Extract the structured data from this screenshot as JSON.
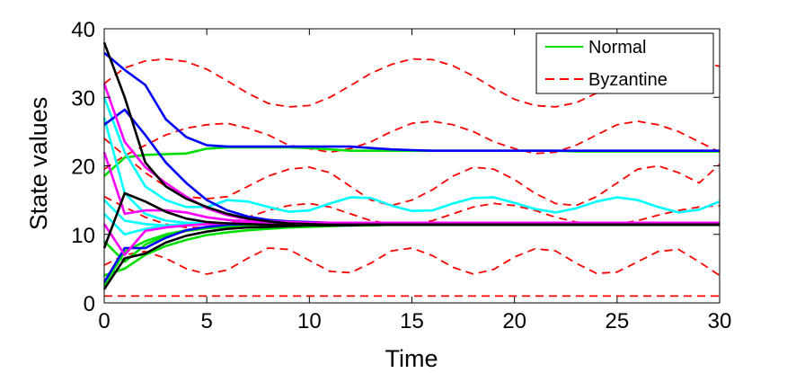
{
  "chart_data": {
    "type": "line",
    "title": "",
    "xlabel": "Time",
    "ylabel": "State values",
    "xlim": [
      0,
      30
    ],
    "ylim": [
      0,
      40
    ],
    "xticks": [
      0,
      5,
      10,
      15,
      20,
      25,
      30
    ],
    "yticks": [
      0,
      10,
      20,
      30,
      40
    ],
    "grid": false,
    "legend": {
      "position": "top-right",
      "entries": [
        {
          "label": "Normal",
          "color": "#00e000",
          "dash": "solid"
        },
        {
          "label": "Byzantine",
          "color": "#ff0000",
          "dash": "dashed"
        }
      ]
    },
    "x": [
      0,
      1,
      2,
      3,
      4,
      5,
      6,
      7,
      8,
      9,
      10,
      11,
      12,
      13,
      14,
      15,
      16,
      17,
      18,
      19,
      20,
      21,
      22,
      23,
      24,
      25,
      26,
      27,
      28,
      29,
      30
    ],
    "series": [
      {
        "name": "Byzantine 1",
        "group": "Byzantine",
        "color": "#ff0000",
        "dash": "dashed",
        "values": [
          32,
          34.3,
          35.3,
          35.6,
          35.2,
          34.1,
          32.4,
          30.6,
          29.1,
          28.6,
          28.8,
          30,
          31.7,
          33.5,
          34.8,
          35.6,
          35.5,
          34.6,
          33.1,
          31.3,
          29.7,
          28.8,
          28.6,
          29.2,
          30.6,
          32.4,
          33.9,
          35.1,
          35.6,
          35.3,
          34.5
        ]
      },
      {
        "name": "Byzantine 2",
        "group": "Byzantine",
        "color": "#ff0000",
        "dash": "dashed",
        "values": [
          19.5,
          21.5,
          23,
          24.5,
          25.5,
          26,
          26.2,
          25.5,
          24.5,
          23,
          22.5,
          22,
          22.5,
          23.5,
          25,
          26.2,
          26.5,
          26,
          25,
          23.5,
          22.5,
          21.8,
          22,
          23,
          24.5,
          26,
          26.5,
          26,
          25,
          23.5,
          22
        ]
      },
      {
        "name": "Byzantine 3",
        "group": "Byzantine",
        "color": "#ff0000",
        "dash": "dashed",
        "values": [
          24,
          21.5,
          19,
          17,
          15.5,
          15.2,
          15.5,
          17,
          18.5,
          19.5,
          19.8,
          19,
          17,
          15,
          14.2,
          15,
          16.5,
          18.5,
          19.8,
          19.5,
          18,
          16,
          14.5,
          14.2,
          15.5,
          17.5,
          19.5,
          20,
          19,
          17.5,
          20.2
        ]
      },
      {
        "name": "Byzantine 4",
        "group": "Byzantine",
        "color": "#ff0000",
        "dash": "dashed",
        "values": [
          15.5,
          14,
          12.5,
          11.5,
          11,
          11,
          11.5,
          12.5,
          13.5,
          14.2,
          14.5,
          14,
          13,
          12,
          11.5,
          11.5,
          12,
          13,
          14,
          14.5,
          14.2,
          13.5,
          12.5,
          11.8,
          11.5,
          11.5,
          12,
          12.8,
          13.5,
          14,
          14.2
        ]
      },
      {
        "name": "Byzantine 5",
        "group": "Byzantine",
        "color": "#ff0000",
        "dash": "dashed",
        "values": [
          5.5,
          7,
          7.5,
          6.5,
          5,
          4.2,
          4.8,
          6.5,
          8,
          7.8,
          6.2,
          4.6,
          4.4,
          5.8,
          7.6,
          8,
          6.9,
          5.2,
          4.2,
          4.9,
          6.7,
          7.9,
          7.6,
          5.8,
          4.3,
          4.5,
          6,
          7.5,
          7.8,
          6,
          4
        ]
      },
      {
        "name": "Byzantine 6",
        "group": "Byzantine",
        "color": "#ff0000",
        "dash": "dashed",
        "values": [
          1,
          1,
          1,
          1,
          1,
          1,
          1,
          1,
          1,
          1,
          1,
          1,
          1,
          1,
          1,
          1,
          1,
          1,
          1,
          1,
          1,
          1,
          1,
          1,
          1,
          1,
          1,
          1,
          1,
          1,
          1
        ]
      },
      {
        "name": "Normal 1",
        "group": "Normal",
        "color": "#00e000",
        "dash": "solid",
        "values": [
          18.5,
          21.2,
          21.6,
          21.7,
          21.8,
          22.5,
          22.7,
          22.7,
          22.7,
          22.7,
          22.6,
          22.4,
          22.2,
          22.2,
          22.2,
          22.2,
          22.2,
          22.2,
          22.2,
          22.2,
          22.2,
          22.2,
          22.2,
          22.1,
          22.1,
          22.1,
          22.1,
          22.1,
          22.1,
          22.1,
          22.1
        ]
      },
      {
        "name": "Normal 2",
        "group": "Normal",
        "color": "#00e000",
        "dash": "solid",
        "values": [
          4,
          5,
          7,
          8.3,
          9.2,
          9.9,
          10.3,
          10.6,
          10.8,
          11,
          11.1,
          11.2,
          11.3,
          11.3,
          11.4,
          11.4,
          11.4,
          11.4,
          11.4,
          11.4,
          11.4,
          11.4,
          11.4,
          11.4,
          11.4,
          11.4,
          11.4,
          11.4,
          11.4,
          11.4,
          11.4
        ]
      },
      {
        "name": "Normal 3",
        "group": "Normal",
        "color": "#00e000",
        "dash": "solid",
        "values": [
          2.5,
          7.5,
          9,
          10,
          10.6,
          11,
          11.2,
          11.3,
          11.4,
          11.4,
          11.4,
          11.4,
          11.4,
          11.4,
          11.4,
          11.4,
          11.4,
          11.4,
          11.4,
          11.4,
          11.4,
          11.4,
          11.4,
          11.4,
          11.4,
          11.4,
          11.4,
          11.4,
          11.4,
          11.4,
          11.4
        ]
      },
      {
        "name": "Normal 4",
        "group": "Normal",
        "color": "#00e000",
        "dash": "solid",
        "values": [
          9,
          6,
          8.5,
          9.8,
          10.5,
          10.9,
          11.1,
          11.2,
          11.3,
          11.4,
          11.4,
          11.4,
          11.4,
          11.4,
          11.4,
          11.4,
          11.4,
          11.4,
          11.4,
          11.4,
          11.4,
          11.4,
          11.4,
          11.4,
          11.4,
          11.4,
          11.4,
          11.4,
          11.4,
          11.4,
          11.4
        ]
      },
      {
        "name": "Normal 5",
        "group": "Normal",
        "color": "#00ffff",
        "dash": "solid",
        "values": [
          30,
          22,
          17,
          15,
          14,
          14,
          15,
          14.8,
          14,
          13.3,
          13.5,
          14.5,
          15.4,
          15.3,
          14.2,
          13.4,
          13.5,
          14.5,
          15.3,
          15.4,
          14.6,
          13.7,
          13.2,
          13.8,
          14.8,
          15.4,
          15,
          14,
          13.2,
          13.6,
          14.8
        ]
      },
      {
        "name": "Normal 6",
        "group": "Normal",
        "color": "#00ffff",
        "dash": "solid",
        "values": [
          15,
          12,
          11.5,
          11.3,
          11.5,
          11.6,
          11.6,
          11.6,
          11.6,
          11.6,
          11.6,
          11.6,
          11.6,
          11.6,
          11.6,
          11.6,
          11.6,
          11.6,
          11.6,
          11.6,
          11.6,
          11.6,
          11.6,
          11.6,
          11.6,
          11.6,
          11.6,
          11.6,
          11.6,
          11.6,
          11.6
        ]
      },
      {
        "name": "Normal 7",
        "group": "Normal",
        "color": "#00ffff",
        "dash": "solid",
        "values": [
          27,
          16,
          13,
          12,
          11.7,
          11.6,
          11.6,
          11.6,
          11.6,
          11.6,
          11.6,
          11.6,
          11.6,
          11.6,
          11.6,
          11.6,
          11.6,
          11.6,
          11.6,
          11.6,
          11.6,
          11.6,
          11.6,
          11.6,
          11.6,
          11.6,
          11.6,
          11.6,
          11.6,
          11.6,
          11.6
        ]
      },
      {
        "name": "Normal 8",
        "group": "Normal",
        "color": "#00ffff",
        "dash": "solid",
        "values": [
          13,
          10,
          10.8,
          11.3,
          11.5,
          11.6,
          11.6,
          11.6,
          11.6,
          11.6,
          11.6,
          11.6,
          11.6,
          11.6,
          11.6,
          11.6,
          11.6,
          11.6,
          11.6,
          11.6,
          11.6,
          11.6,
          11.6,
          11.6,
          11.6,
          11.6,
          11.6,
          11.6,
          11.6,
          11.6,
          11.6
        ]
      },
      {
        "name": "Normal 9",
        "group": "Normal",
        "color": "#0000ff",
        "dash": "solid",
        "values": [
          36.5,
          34,
          31.8,
          26.8,
          24.2,
          23,
          22.8,
          22.8,
          22.8,
          22.8,
          22.8,
          22.8,
          22.8,
          22.6,
          22.4,
          22.3,
          22.2,
          22.2,
          22.2,
          22.2,
          22.2,
          22.2,
          22.2,
          22.2,
          22.2,
          22.2,
          22.2,
          22.2,
          22.2,
          22.2,
          22.2
        ]
      },
      {
        "name": "Normal 10",
        "group": "Normal",
        "color": "#0000ff",
        "dash": "solid",
        "values": [
          26,
          28.2,
          24.5,
          20.5,
          17.5,
          15,
          13.5,
          12.6,
          12.1,
          11.9,
          11.8,
          11.7,
          11.7,
          11.7,
          11.7,
          11.7,
          11.7,
          11.7,
          11.7,
          11.7,
          11.7,
          11.7,
          11.7,
          11.7,
          11.7,
          11.7,
          11.7,
          11.7,
          11.7,
          11.7,
          11.7
        ]
      },
      {
        "name": "Normal 11",
        "group": "Normal",
        "color": "#0000ff",
        "dash": "solid",
        "values": [
          3,
          8,
          8,
          9.5,
          10.6,
          11.1,
          11.4,
          11.5,
          11.6,
          11.6,
          11.6,
          11.6,
          11.6,
          11.6,
          11.6,
          11.6,
          11.6,
          11.6,
          11.6,
          11.6,
          11.6,
          11.6,
          11.6,
          11.6,
          11.6,
          11.6,
          11.6,
          11.6,
          11.6,
          11.6,
          11.6
        ]
      },
      {
        "name": "Normal 12",
        "group": "Normal",
        "color": "#ff00ff",
        "dash": "solid",
        "values": [
          32,
          23.5,
          19.8,
          17.5,
          15.5,
          13.8,
          12.8,
          12.2,
          11.9,
          11.8,
          11.7,
          11.7,
          11.7,
          11.7,
          11.7,
          11.7,
          11.7,
          11.7,
          11.7,
          11.7,
          11.7,
          11.7,
          11.7,
          11.7,
          11.7,
          11.7,
          11.7,
          11.7,
          11.7,
          11.7,
          11.7
        ]
      },
      {
        "name": "Normal 13",
        "group": "Normal",
        "color": "#ff00ff",
        "dash": "solid",
        "values": [
          22,
          13,
          13.5,
          13.5,
          13.2,
          12.5,
          12.1,
          11.9,
          11.8,
          11.7,
          11.7,
          11.7,
          11.7,
          11.7,
          11.7,
          11.7,
          11.7,
          11.7,
          11.7,
          11.7,
          11.7,
          11.7,
          11.7,
          11.7,
          11.7,
          11.7,
          11.7,
          11.7,
          11.7,
          11.7,
          11.7
        ]
      },
      {
        "name": "Normal 14",
        "group": "Normal",
        "color": "#ff00ff",
        "dash": "solid",
        "values": [
          11.5,
          7,
          10.5,
          11,
          11.3,
          11.5,
          11.6,
          11.7,
          11.7,
          11.7,
          11.7,
          11.7,
          11.7,
          11.7,
          11.7,
          11.7,
          11.7,
          11.7,
          11.7,
          11.7,
          11.7,
          11.7,
          11.7,
          11.7,
          11.7,
          11.7,
          11.7,
          11.7,
          11.7,
          11.7,
          11.7
        ]
      },
      {
        "name": "Normal 15",
        "group": "Normal",
        "color": "#000000",
        "dash": "solid",
        "values": [
          38,
          30,
          20.5,
          17,
          15.2,
          14,
          13,
          12.3,
          11.9,
          11.6,
          11.5,
          11.4,
          11.4,
          11.4,
          11.4,
          11.4,
          11.4,
          11.4,
          11.4,
          11.4,
          11.4,
          11.4,
          11.4,
          11.4,
          11.4,
          11.4,
          11.4,
          11.4,
          11.4,
          11.4,
          11.4
        ]
      },
      {
        "name": "Normal 16",
        "group": "Normal",
        "color": "#000000",
        "dash": "solid",
        "values": [
          8,
          16,
          14.8,
          13.3,
          12.3,
          11.8,
          11.6,
          11.5,
          11.4,
          11.4,
          11.4,
          11.4,
          11.4,
          11.4,
          11.4,
          11.4,
          11.4,
          11.4,
          11.4,
          11.4,
          11.4,
          11.4,
          11.4,
          11.4,
          11.4,
          11.4,
          11.4,
          11.4,
          11.4,
          11.4,
          11.4
        ]
      },
      {
        "name": "Normal 17",
        "group": "Normal",
        "color": "#000000",
        "dash": "solid",
        "values": [
          2,
          6.5,
          7.2,
          8.8,
          9.8,
          10.4,
          10.8,
          11,
          11.1,
          11.2,
          11.3,
          11.3,
          11.3,
          11.4,
          11.4,
          11.4,
          11.4,
          11.4,
          11.4,
          11.4,
          11.4,
          11.4,
          11.4,
          11.4,
          11.4,
          11.4,
          11.4,
          11.4,
          11.4,
          11.4,
          11.4
        ]
      }
    ]
  }
}
